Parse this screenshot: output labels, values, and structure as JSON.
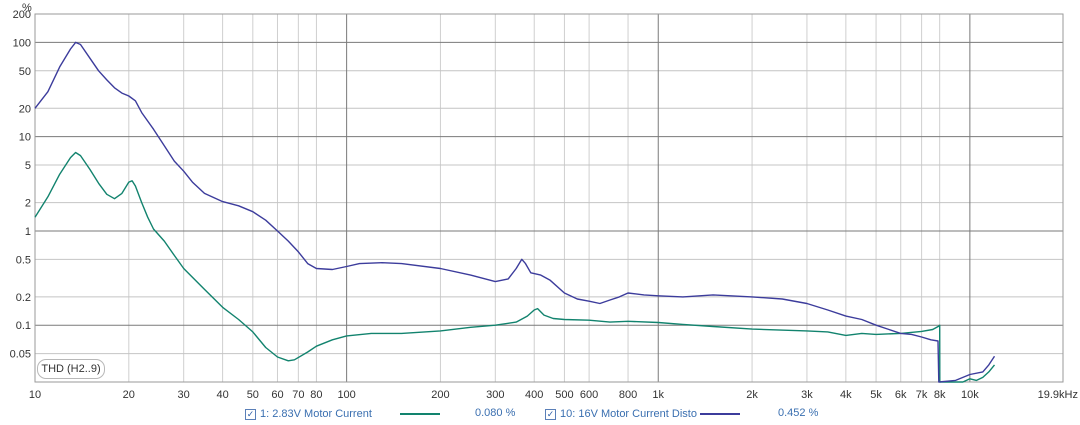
{
  "chart_data": {
    "type": "line",
    "x_unit": "Hz",
    "y_unit": "%",
    "x_scale": "log",
    "y_scale": "log",
    "xlim": [
      10,
      19900
    ],
    "ylim": [
      0.025,
      200
    ],
    "grid": true,
    "x_ticks": [
      {
        "value": 10,
        "label": "10"
      },
      {
        "value": 20,
        "label": "20"
      },
      {
        "value": 30,
        "label": "30"
      },
      {
        "value": 40,
        "label": "40"
      },
      {
        "value": 50,
        "label": "50"
      },
      {
        "value": 60,
        "label": "60"
      },
      {
        "value": 70,
        "label": "70"
      },
      {
        "value": 80,
        "label": "80"
      },
      {
        "value": 100,
        "label": "100"
      },
      {
        "value": 200,
        "label": "200"
      },
      {
        "value": 300,
        "label": "300"
      },
      {
        "value": 400,
        "label": "400"
      },
      {
        "value": 500,
        "label": "500"
      },
      {
        "value": 600,
        "label": "600"
      },
      {
        "value": 800,
        "label": "800"
      },
      {
        "value": 1000,
        "label": "1k"
      },
      {
        "value": 2000,
        "label": "2k"
      },
      {
        "value": 3000,
        "label": "3k"
      },
      {
        "value": 4000,
        "label": "4k"
      },
      {
        "value": 5000,
        "label": "5k"
      },
      {
        "value": 6000,
        "label": "6k"
      },
      {
        "value": 7000,
        "label": "7k"
      },
      {
        "value": 8000,
        "label": "8k"
      },
      {
        "value": 10000,
        "label": "10k"
      },
      {
        "value": 19900,
        "label": "19.9kHz"
      }
    ],
    "y_ticks": [
      {
        "value": 200,
        "label": "200"
      },
      {
        "value": 100,
        "label": "100"
      },
      {
        "value": 50,
        "label": "50"
      },
      {
        "value": 20,
        "label": "20"
      },
      {
        "value": 10,
        "label": "10"
      },
      {
        "value": 5,
        "label": "5"
      },
      {
        "value": 2,
        "label": "2"
      },
      {
        "value": 1,
        "label": "1"
      },
      {
        "value": 0.5,
        "label": "0.5"
      },
      {
        "value": 0.2,
        "label": "0.2"
      },
      {
        "value": 0.1,
        "label": "0.1"
      },
      {
        "value": 0.05,
        "label": "0.05"
      }
    ],
    "series": [
      {
        "name": "1: 2.83V Motor Current",
        "color": "#12836e",
        "legend_value": "0.080 %",
        "points": [
          [
            10,
            1.4
          ],
          [
            11,
            2.3
          ],
          [
            12,
            4.0
          ],
          [
            13,
            6.0
          ],
          [
            13.5,
            6.8
          ],
          [
            14,
            6.3
          ],
          [
            15,
            4.5
          ],
          [
            16,
            3.2
          ],
          [
            17,
            2.45
          ],
          [
            18,
            2.2
          ],
          [
            19,
            2.5
          ],
          [
            20,
            3.3
          ],
          [
            20.5,
            3.4
          ],
          [
            21,
            3.0
          ],
          [
            22,
            2.0
          ],
          [
            23,
            1.4
          ],
          [
            24,
            1.05
          ],
          [
            26,
            0.78
          ],
          [
            28,
            0.55
          ],
          [
            30,
            0.4
          ],
          [
            35,
            0.24
          ],
          [
            40,
            0.155
          ],
          [
            45,
            0.115
          ],
          [
            50,
            0.085
          ],
          [
            55,
            0.058
          ],
          [
            60,
            0.046
          ],
          [
            65,
            0.042
          ],
          [
            68,
            0.043
          ],
          [
            75,
            0.052
          ],
          [
            80,
            0.06
          ],
          [
            90,
            0.07
          ],
          [
            100,
            0.077
          ],
          [
            120,
            0.082
          ],
          [
            150,
            0.082
          ],
          [
            200,
            0.087
          ],
          [
            250,
            0.095
          ],
          [
            300,
            0.1
          ],
          [
            350,
            0.108
          ],
          [
            380,
            0.125
          ],
          [
            400,
            0.145
          ],
          [
            410,
            0.15
          ],
          [
            430,
            0.128
          ],
          [
            460,
            0.118
          ],
          [
            500,
            0.115
          ],
          [
            600,
            0.113
          ],
          [
            700,
            0.108
          ],
          [
            800,
            0.11
          ],
          [
            1000,
            0.107
          ],
          [
            1200,
            0.102
          ],
          [
            1500,
            0.097
          ],
          [
            2000,
            0.091
          ],
          [
            3000,
            0.087
          ],
          [
            3500,
            0.085
          ],
          [
            4000,
            0.078
          ],
          [
            4500,
            0.082
          ],
          [
            5000,
            0.08
          ],
          [
            6000,
            0.082
          ],
          [
            7000,
            0.086
          ],
          [
            7600,
            0.09
          ],
          [
            7950,
            0.098
          ],
          [
            8000,
            0.1
          ],
          [
            8010,
            0.025
          ],
          [
            9500,
            0.025
          ],
          [
            10000,
            0.027
          ],
          [
            10500,
            0.026
          ],
          [
            11000,
            0.028
          ],
          [
            11500,
            0.032
          ],
          [
            12000,
            0.038
          ]
        ]
      },
      {
        "name": "10: 16V Motor Current Distortic",
        "color": "#3c3c9c",
        "legend_value": "0.452 %",
        "points": [
          [
            10,
            20
          ],
          [
            11,
            30
          ],
          [
            12,
            55
          ],
          [
            13,
            85
          ],
          [
            13.5,
            100
          ],
          [
            14,
            95
          ],
          [
            15,
            68
          ],
          [
            16,
            50
          ],
          [
            17,
            40
          ],
          [
            18,
            33
          ],
          [
            19,
            29
          ],
          [
            20,
            27
          ],
          [
            21,
            24
          ],
          [
            22,
            18
          ],
          [
            24,
            12
          ],
          [
            26,
            8
          ],
          [
            28,
            5.5
          ],
          [
            30,
            4.3
          ],
          [
            32,
            3.3
          ],
          [
            35,
            2.5
          ],
          [
            40,
            2.05
          ],
          [
            45,
            1.85
          ],
          [
            50,
            1.6
          ],
          [
            55,
            1.3
          ],
          [
            60,
            1.0
          ],
          [
            65,
            0.78
          ],
          [
            70,
            0.6
          ],
          [
            75,
            0.45
          ],
          [
            80,
            0.4
          ],
          [
            90,
            0.39
          ],
          [
            100,
            0.42
          ],
          [
            110,
            0.45
          ],
          [
            130,
            0.46
          ],
          [
            150,
            0.45
          ],
          [
            200,
            0.4
          ],
          [
            250,
            0.34
          ],
          [
            300,
            0.29
          ],
          [
            330,
            0.31
          ],
          [
            350,
            0.4
          ],
          [
            365,
            0.5
          ],
          [
            375,
            0.45
          ],
          [
            390,
            0.36
          ],
          [
            420,
            0.34
          ],
          [
            450,
            0.3
          ],
          [
            500,
            0.22
          ],
          [
            550,
            0.19
          ],
          [
            600,
            0.18
          ],
          [
            650,
            0.17
          ],
          [
            700,
            0.185
          ],
          [
            750,
            0.2
          ],
          [
            800,
            0.22
          ],
          [
            900,
            0.21
          ],
          [
            1000,
            0.205
          ],
          [
            1200,
            0.2
          ],
          [
            1500,
            0.21
          ],
          [
            2000,
            0.2
          ],
          [
            2500,
            0.19
          ],
          [
            3000,
            0.17
          ],
          [
            3500,
            0.145
          ],
          [
            4000,
            0.125
          ],
          [
            4500,
            0.115
          ],
          [
            5000,
            0.1
          ],
          [
            5500,
            0.09
          ],
          [
            6000,
            0.082
          ],
          [
            6500,
            0.08
          ],
          [
            7000,
            0.075
          ],
          [
            7500,
            0.07
          ],
          [
            7900,
            0.068
          ],
          [
            7950,
            0.025
          ],
          [
            9000,
            0.026
          ],
          [
            10000,
            0.03
          ],
          [
            11000,
            0.032
          ],
          [
            11500,
            0.038
          ],
          [
            12000,
            0.047
          ]
        ]
      }
    ]
  },
  "badge": {
    "label": "THD (H2..9)"
  },
  "legend": [
    {
      "name": "1: 2.83V Motor Current",
      "value": "0.080 %",
      "color": "#12836e",
      "checked": true
    },
    {
      "name": "10: 16V Motor Current Distortic",
      "value": "0.452 %",
      "color": "#3c3c9c",
      "checked": true
    }
  ]
}
